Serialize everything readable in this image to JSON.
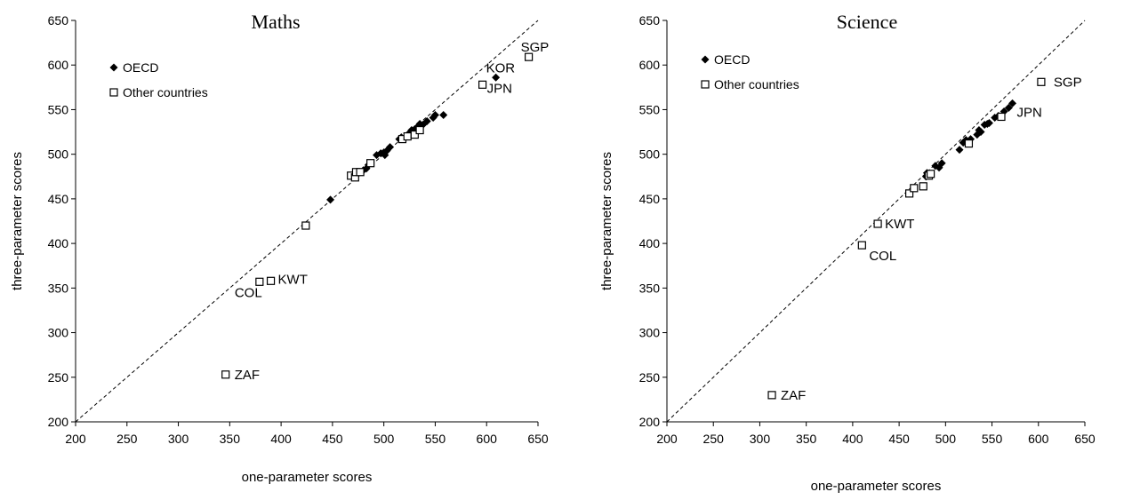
{
  "chart_data": [
    {
      "type": "scatter",
      "title": "Maths",
      "xlabel": "one-parameter scores",
      "ylabel": "three-parameter scores",
      "xlim": [
        200,
        650
      ],
      "ylim": [
        200,
        650
      ],
      "xticks": [
        200,
        250,
        300,
        350,
        400,
        450,
        500,
        550,
        600,
        650
      ],
      "yticks": [
        200,
        250,
        300,
        350,
        400,
        450,
        500,
        550,
        600,
        650
      ],
      "grid": false,
      "legend_position": "top-left",
      "reference_line": "y = x (dashed)",
      "series": [
        {
          "name": "OECD",
          "marker": "filled-diamond",
          "points": [
            [
              448,
              449
            ],
            [
              483,
              484
            ],
            [
              480,
              482
            ],
            [
              485,
              488
            ],
            [
              493,
              499
            ],
            [
              497,
              501
            ],
            [
              500,
              502
            ],
            [
              501,
              499
            ],
            [
              503,
              504
            ],
            [
              506,
              508
            ],
            [
              515,
              517
            ],
            [
              517,
              519
            ],
            [
              525,
              524
            ],
            [
              527,
              527
            ],
            [
              530,
              528
            ],
            [
              533,
              531
            ],
            [
              535,
              534
            ],
            [
              538,
              533
            ],
            [
              542,
              537
            ],
            [
              548,
              541
            ],
            [
              550,
              544
            ],
            [
              558,
              544
            ],
            [
              609,
              586
            ]
          ]
        },
        {
          "name": "Other countries",
          "marker": "open-square",
          "points": [
            [
              346,
              253
            ],
            [
              379,
              357
            ],
            [
              390,
              358
            ],
            [
              424,
              420
            ],
            [
              468,
              476
            ],
            [
              472,
              474
            ],
            [
              473,
              480
            ],
            [
              477,
              480
            ],
            [
              487,
              490
            ],
            [
              518,
              517
            ],
            [
              523,
              520
            ],
            [
              530,
              522
            ],
            [
              535,
              527
            ],
            [
              596,
              578
            ],
            [
              641,
              609
            ]
          ]
        }
      ],
      "annotations": [
        {
          "text": "ZAF",
          "x": 346,
          "y": 253
        },
        {
          "text": "COL",
          "x": 379,
          "y": 357
        },
        {
          "text": "KWT",
          "x": 390,
          "y": 358
        },
        {
          "text": "KOR",
          "x": 596,
          "y": 578
        },
        {
          "text": "JPN",
          "x": 609,
          "y": 586
        },
        {
          "text": "SGP",
          "x": 641,
          "y": 609
        }
      ]
    },
    {
      "type": "scatter",
      "title": "Science",
      "xlabel": "one-parameter scores",
      "ylabel": "three-parameter scores",
      "xlim": [
        200,
        650
      ],
      "ylim": [
        200,
        650
      ],
      "xticks": [
        200,
        250,
        300,
        350,
        400,
        450,
        500,
        550,
        600,
        650
      ],
      "yticks": [
        200,
        250,
        300,
        350,
        400,
        450,
        500,
        550,
        600,
        650
      ],
      "grid": false,
      "legend_position": "top-left",
      "reference_line": "y = x (dashed)",
      "series": [
        {
          "name": "OECD",
          "marker": "filled-diamond",
          "points": [
            [
              479,
              475
            ],
            [
              480,
              479
            ],
            [
              489,
              487
            ],
            [
              493,
              485
            ],
            [
              496,
              490
            ],
            [
              515,
              505
            ],
            [
              519,
              513
            ],
            [
              522,
              516
            ],
            [
              527,
              517
            ],
            [
              534,
              522
            ],
            [
              536,
              527
            ],
            [
              538,
              525
            ],
            [
              542,
              533
            ],
            [
              545,
              534
            ],
            [
              547,
              535
            ],
            [
              553,
              541
            ],
            [
              557,
              543
            ],
            [
              563,
              548
            ],
            [
              568,
              552
            ],
            [
              572,
              557
            ]
          ]
        },
        {
          "name": "Other countries",
          "marker": "open-square",
          "points": [
            [
              313,
              230
            ],
            [
              410,
              398
            ],
            [
              427,
              422
            ],
            [
              461,
              456
            ],
            [
              466,
              462
            ],
            [
              476,
              464
            ],
            [
              482,
              476
            ],
            [
              484,
              478
            ],
            [
              525,
              512
            ],
            [
              560,
              542
            ],
            [
              603,
              581
            ]
          ]
        }
      ],
      "annotations": [
        {
          "text": "ZAF",
          "x": 313,
          "y": 230
        },
        {
          "text": "COL",
          "x": 410,
          "y": 398
        },
        {
          "text": "KWT",
          "x": 427,
          "y": 422
        },
        {
          "text": "JPN",
          "x": 572,
          "y": 557
        },
        {
          "text": "SGP",
          "x": 603,
          "y": 581
        }
      ]
    }
  ]
}
